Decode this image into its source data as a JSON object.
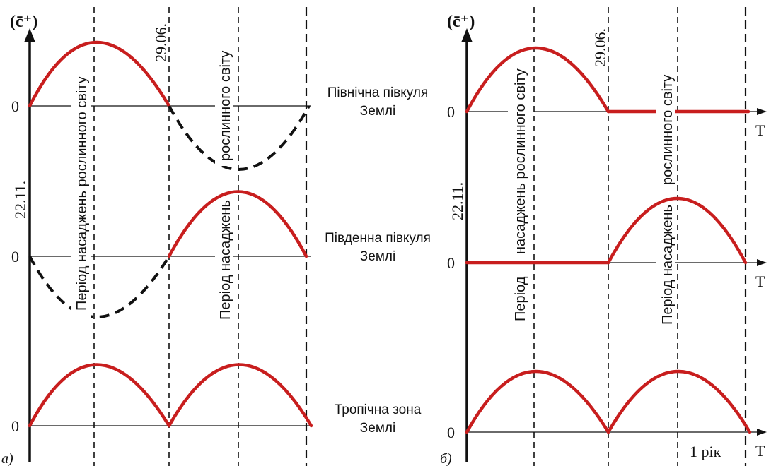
{
  "colors": {
    "curve": "#c81e1e",
    "curve_neg": "#111111",
    "axes": "#111111"
  },
  "left": {
    "panel_label": "а)",
    "y_axis_label": "(c̄⁺)",
    "date_start": "22.11.",
    "date_mid": "29.06.",
    "zero": "0",
    "rows": [
      {
        "label_1": "Північна півкуля",
        "label_2": "Землі"
      },
      {
        "label_1": "Південна півкуля",
        "label_2": "Землі"
      },
      {
        "label_1": "Тропічна зона",
        "label_2": "Землі"
      }
    ],
    "period_1": "Період насаджень рослинного світу",
    "period_2_top": "рослинного світу",
    "period_2_bottom": "Період насаджень"
  },
  "right": {
    "panel_label": "б)",
    "y_axis_label": "(c̄⁺)",
    "date_start": "22.11.",
    "date_mid": "29.06.",
    "zero": "0",
    "t_label": "T",
    "period_1_a": "насаджень рослинного світу",
    "period_1_b": "Період",
    "period_2_a": "рослинного світу",
    "period_2_b": "Період насаджень",
    "year_label": "1 рік"
  }
}
